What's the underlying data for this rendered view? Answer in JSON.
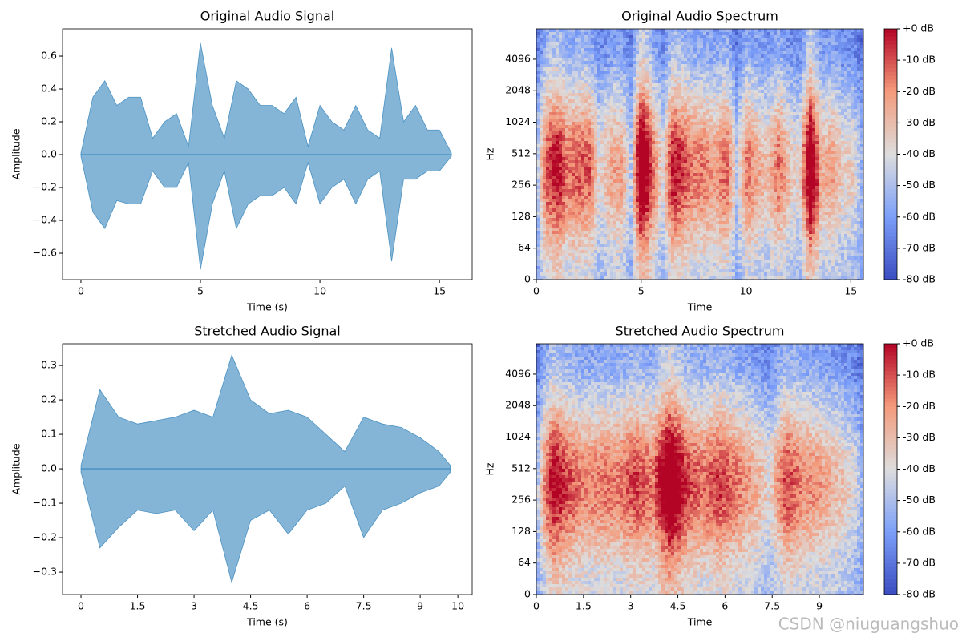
{
  "chart_data": [
    {
      "type": "waveform",
      "title": "Original Audio Signal",
      "xlabel": "Time (s)",
      "ylabel": "Amplitude",
      "color": "#1f77b4",
      "x": [
        0,
        0.5,
        1,
        1.5,
        2,
        2.5,
        3,
        3.5,
        4,
        4.5,
        5,
        5.5,
        6,
        6.5,
        7,
        7.5,
        8,
        8.5,
        9,
        9.5,
        10,
        10.5,
        11,
        11.5,
        12,
        12.5,
        13,
        13.5,
        14,
        14.5,
        15,
        15.5
      ],
      "values_max": [
        0.01,
        0.35,
        0.45,
        0.3,
        0.35,
        0.35,
        0.1,
        0.2,
        0.25,
        0.05,
        0.68,
        0.3,
        0.1,
        0.45,
        0.4,
        0.3,
        0.3,
        0.25,
        0.35,
        0.05,
        0.3,
        0.2,
        0.15,
        0.3,
        0.15,
        0.1,
        0.65,
        0.2,
        0.3,
        0.15,
        0.15,
        0.01
      ],
      "values_min": [
        -0.01,
        -0.35,
        -0.45,
        -0.28,
        -0.3,
        -0.3,
        -0.1,
        -0.2,
        -0.2,
        -0.05,
        -0.7,
        -0.3,
        -0.1,
        -0.45,
        -0.3,
        -0.25,
        -0.25,
        -0.2,
        -0.3,
        -0.05,
        -0.3,
        -0.2,
        -0.15,
        -0.3,
        -0.15,
        -0.1,
        -0.65,
        -0.15,
        -0.15,
        -0.1,
        -0.1,
        -0.01
      ],
      "xlim": [
        -0.77,
        16.37
      ],
      "xticks": [
        0,
        5,
        10,
        15
      ],
      "ylim": [
        -0.761,
        0.766
      ],
      "yticks": [
        {
          "value": -0.6,
          "label": "−0.6"
        },
        {
          "value": -0.4,
          "label": "−0.4"
        },
        {
          "value": -0.2,
          "label": "−0.2"
        },
        {
          "value": 0,
          "label": "0.0"
        },
        0.2,
        0.4,
        0.6
      ]
    },
    {
      "type": "spectrogram",
      "title": "Original Audio Spectrum",
      "xlabel": "Time",
      "ylabel": "Hz",
      "yscale": "symlog",
      "colormap": "coolwarm",
      "xlim": [
        0,
        15.6
      ],
      "xticks": [
        0,
        5,
        10,
        15
      ],
      "ylim": [
        0,
        8000
      ],
      "yticks": [
        0,
        64,
        128,
        256,
        512,
        1024,
        2048,
        4096
      ],
      "clim": [
        -80,
        0
      ],
      "cticks": [
        {
          "value": 0,
          "label": "+0 dB"
        },
        {
          "value": -10,
          "label": "-10 dB"
        },
        {
          "value": -20,
          "label": "-20 dB"
        },
        {
          "value": -30,
          "label": "-30 dB"
        },
        {
          "value": -40,
          "label": "-40 dB"
        },
        {
          "value": -50,
          "label": "-50 dB"
        },
        {
          "value": -60,
          "label": "-60 dB"
        },
        {
          "value": -70,
          "label": "-70 dB"
        },
        {
          "value": -80,
          "label": "-80 dB"
        }
      ]
    },
    {
      "type": "waveform",
      "title": "Stretched Audio Signal",
      "xlabel": "Time (s)",
      "ylabel": "Amplitude",
      "color": "#1f77b4",
      "x": [
        0,
        0.5,
        1,
        1.5,
        2,
        2.5,
        3,
        3.5,
        4,
        4.5,
        5,
        5.5,
        6,
        6.5,
        7,
        7.5,
        8,
        8.5,
        9,
        9.5,
        9.8
      ],
      "values_max": [
        0.01,
        0.23,
        0.15,
        0.13,
        0.14,
        0.15,
        0.17,
        0.15,
        0.33,
        0.2,
        0.16,
        0.17,
        0.15,
        0.1,
        0.05,
        0.15,
        0.13,
        0.12,
        0.09,
        0.05,
        0.01
      ],
      "values_min": [
        -0.01,
        -0.23,
        -0.17,
        -0.12,
        -0.13,
        -0.12,
        -0.18,
        -0.12,
        -0.33,
        -0.15,
        -0.12,
        -0.19,
        -0.12,
        -0.1,
        -0.05,
        -0.2,
        -0.12,
        -0.1,
        -0.07,
        -0.05,
        -0.01
      ],
      "xlim": [
        -0.49,
        10.38
      ],
      "xticks": [
        0,
        1.5,
        3,
        4.5,
        6,
        7.5,
        9,
        10
      ],
      "ylim": [
        -0.365,
        0.363
      ],
      "yticks": [
        {
          "value": -0.3,
          "label": "−0.3"
        },
        {
          "value": -0.2,
          "label": "−0.2"
        },
        {
          "value": -0.1,
          "label": "−0.1"
        },
        {
          "value": 0,
          "label": "0.0"
        },
        0.1,
        0.2,
        0.3
      ]
    },
    {
      "type": "spectrogram",
      "title": "Stretched Audio Spectrum",
      "xlabel": "Time",
      "ylabel": "Hz",
      "yscale": "symlog",
      "colormap": "coolwarm",
      "xlim": [
        0,
        10.4
      ],
      "xticks": [
        0,
        1.5,
        3,
        4.5,
        6,
        7.5,
        9
      ],
      "ylim": [
        0,
        8000
      ],
      "yticks": [
        0,
        64,
        128,
        256,
        512,
        1024,
        2048,
        4096
      ],
      "clim": [
        -80,
        0
      ],
      "cticks": [
        {
          "value": 0,
          "label": "+0 dB"
        },
        {
          "value": -10,
          "label": "-10 dB"
        },
        {
          "value": -20,
          "label": "-20 dB"
        },
        {
          "value": -30,
          "label": "-30 dB"
        },
        {
          "value": -40,
          "label": "-40 dB"
        },
        {
          "value": -50,
          "label": "-50 dB"
        },
        {
          "value": -60,
          "label": "-60 dB"
        },
        {
          "value": -70,
          "label": "-70 dB"
        },
        {
          "value": -80,
          "label": "-80 dB"
        }
      ]
    }
  ],
  "watermark": "CSDN @niuguangshuo"
}
